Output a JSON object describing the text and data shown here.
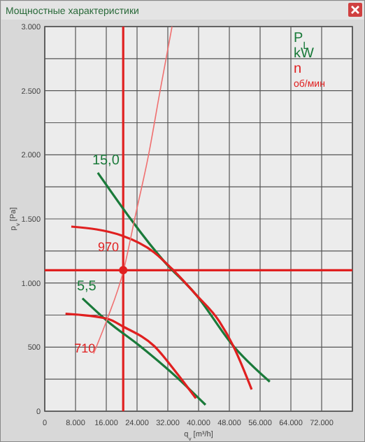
{
  "chart_data": {
    "type": "line",
    "title": "Мощностные характеристики",
    "xlabel": "q$_{v}$ [m³/h]",
    "ylabel": "p$_{v}$ [Pa]",
    "xlim": [
      0,
      80000
    ],
    "ylim": [
      0,
      3000
    ],
    "xticks": [
      {
        "value": 0,
        "label": "0"
      },
      {
        "value": 8000,
        "label": "8.000"
      },
      {
        "value": 16000,
        "label": "16.000"
      },
      {
        "value": 24000,
        "label": "24.000"
      },
      {
        "value": 32000,
        "label": "32.000"
      },
      {
        "value": 40000,
        "label": "40.000"
      },
      {
        "value": 48000,
        "label": "48.000"
      },
      {
        "value": 56000,
        "label": "56.000"
      },
      {
        "value": 64000,
        "label": "64.000"
      },
      {
        "value": 72000,
        "label": "72.000"
      },
      {
        "value": 80000,
        "label": null
      }
    ],
    "yticks": [
      {
        "value": 0,
        "label": "0"
      },
      {
        "value": 250,
        "label": null
      },
      {
        "value": 500,
        "label": "500"
      },
      {
        "value": 750,
        "label": null
      },
      {
        "value": 1000,
        "label": "1.000"
      },
      {
        "value": 1250,
        "label": null
      },
      {
        "value": 1500,
        "label": "1.500"
      },
      {
        "value": 1750,
        "label": null
      },
      {
        "value": 2000,
        "label": "2.000"
      },
      {
        "value": 2250,
        "label": null
      },
      {
        "value": 2500,
        "label": "2.500"
      },
      {
        "value": 2750,
        "label": null
      },
      {
        "value": 3000,
        "label": "3.000"
      }
    ],
    "grid": true,
    "marker": "none",
    "series": [
      {
        "name": "15,0",
        "color": "#1a7a3a",
        "x": [
          13800,
          31300,
          39300,
          49000,
          58500
        ],
        "values": [
          1860,
          1160,
          910,
          510,
          230
        ]
      },
      {
        "name": "970",
        "color": "#e02020",
        "x": [
          6900,
          20000,
          28400,
          33100,
          39300,
          45400,
          49000,
          53800
        ],
        "values": [
          1440,
          1370,
          1240,
          1110,
          910,
          700,
          510,
          170
        ]
      },
      {
        "name": "5,5",
        "color": "#1a7a3a",
        "x": [
          9800,
          16400,
          24700,
          34500,
          41800
        ],
        "values": [
          880,
          700,
          510,
          260,
          50
        ]
      },
      {
        "name": "710",
        "color": "#e02020",
        "x": [
          5400,
          16400,
          20400,
          28400,
          34500,
          39300
        ],
        "values": [
          760,
          720,
          660,
          510,
          290,
          100
        ]
      },
      {
        "color": "#f07070",
        "x": [
          12700,
          16000,
          20500,
          23600,
          27000,
          30000,
          33100
        ],
        "values": [
          450,
          700,
          1100,
          1530,
          2000,
          2500,
          3000
        ]
      },
      {
        "type": "scatter",
        "marker": "circle",
        "color": "#e02020",
        "x": [
          20400
        ],
        "values": [
          1100
        ]
      }
    ],
    "ref_lines": [
      {
        "axis": "x",
        "value": 20400,
        "color": "#e02020"
      },
      {
        "axis": "y",
        "value": 1100,
        "color": "#e02020"
      }
    ],
    "annotations": [
      "P$_{L}$",
      "kW",
      "n",
      "об/мин"
    ]
  }
}
